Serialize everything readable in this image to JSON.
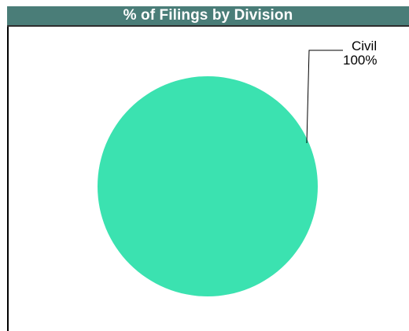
{
  "title": "% of Filings by Division",
  "colors": {
    "title_background": "#4a7d78",
    "title_text": "#ffffff",
    "slice_civil": "#3be2b0",
    "leader_line": "#000000"
  },
  "chart_data": {
    "type": "pie",
    "title": "% of Filings by Division",
    "slices": [
      {
        "label": "Civil",
        "value": 100,
        "percent_label": "100%",
        "color": "#3be2b0"
      }
    ],
    "legend": "none"
  }
}
